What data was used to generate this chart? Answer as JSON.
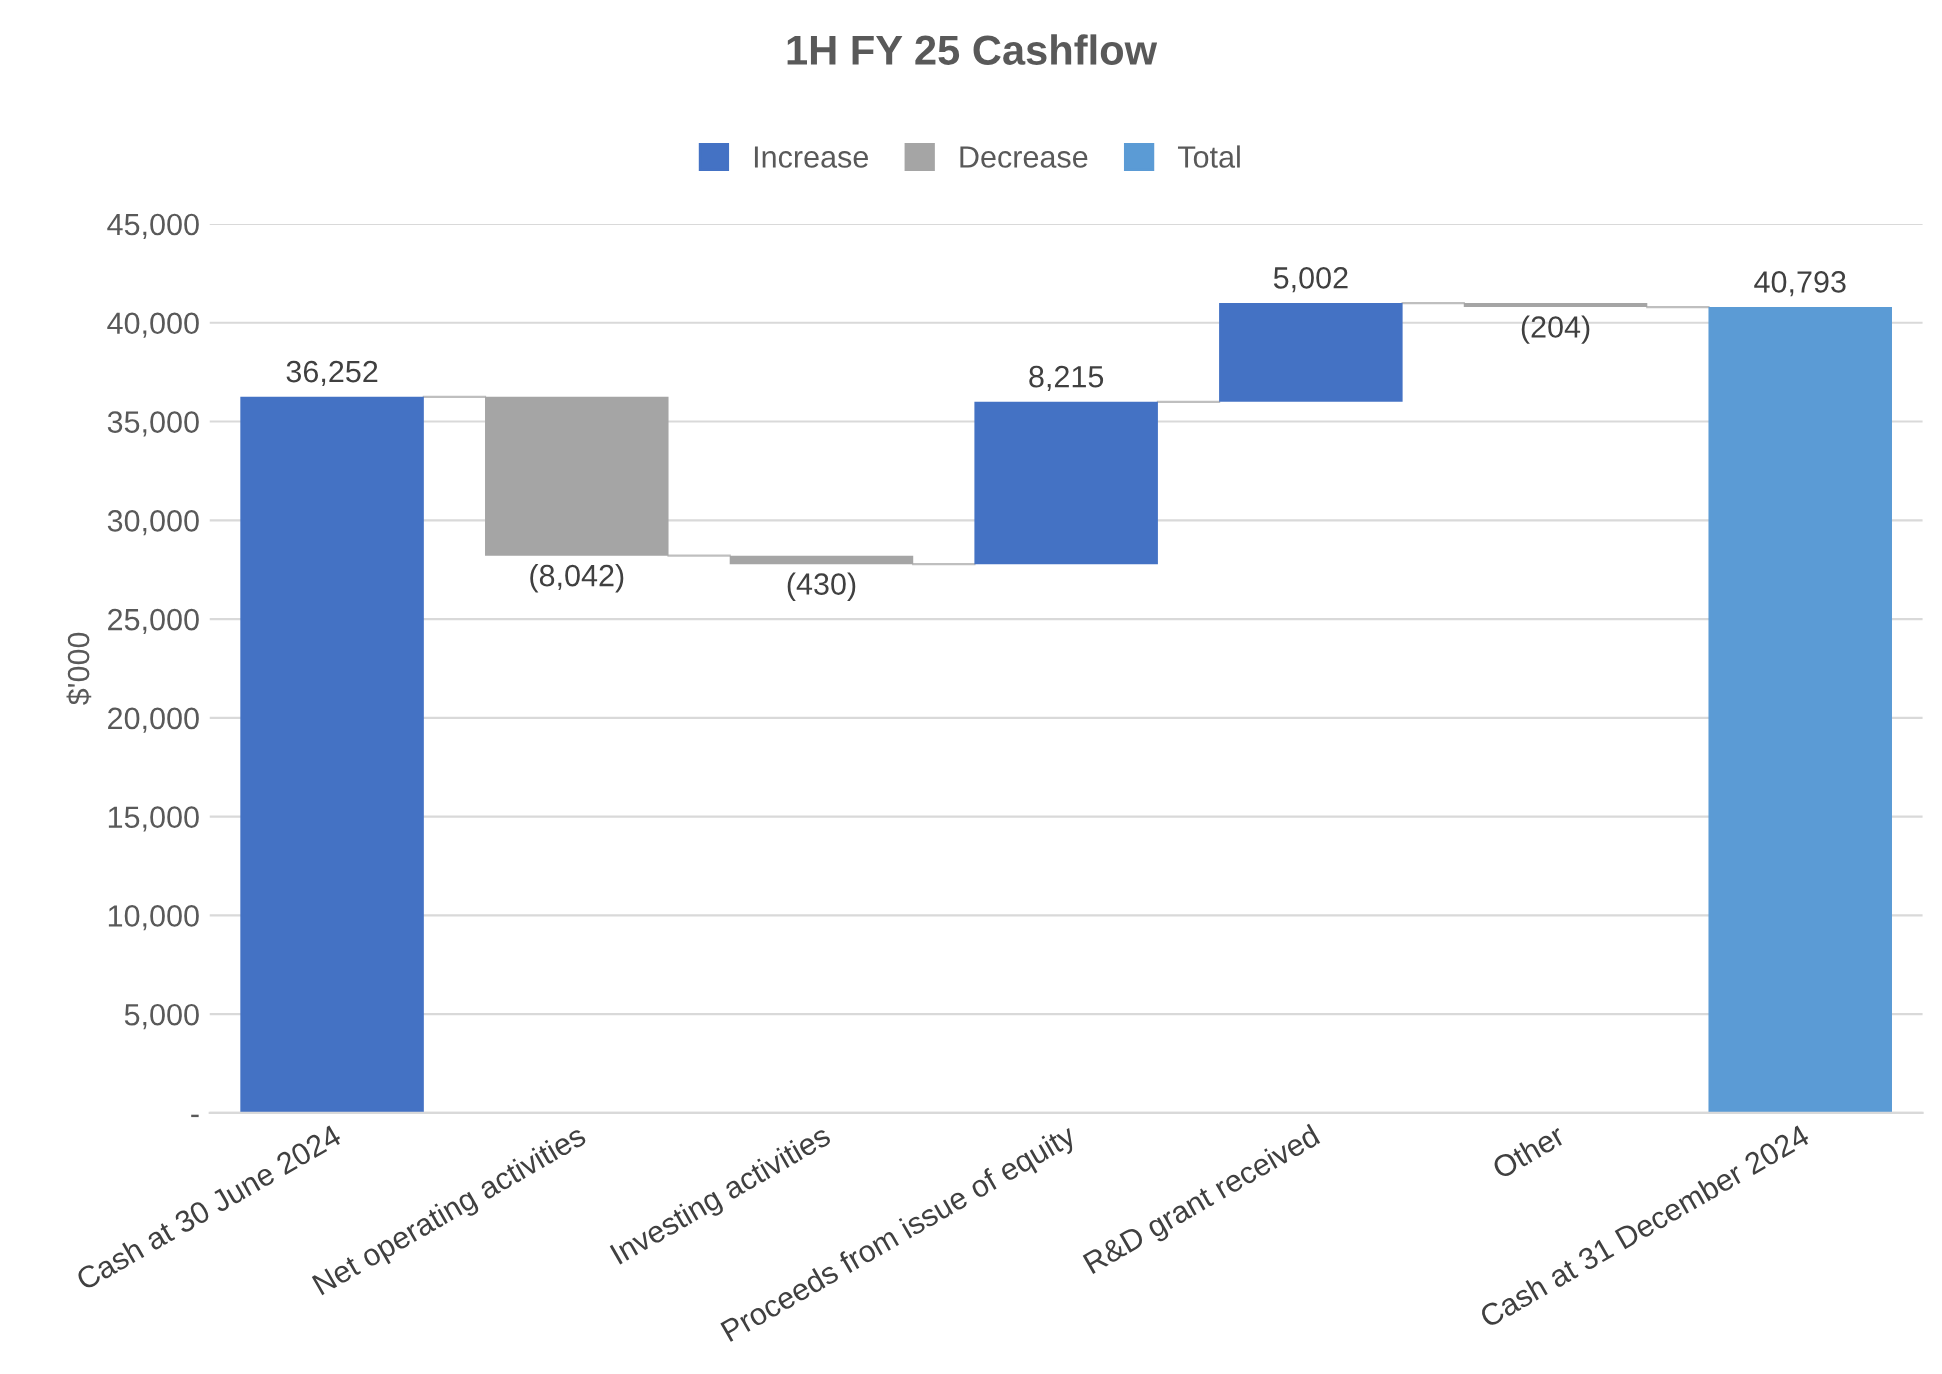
{
  "chart_data": {
    "type": "bar",
    "title": "1H FY 25 Cashflow",
    "ylabel": "$'000",
    "categories": [
      "Cash at 30 June 2024",
      "Net operating activities",
      "Investing activities",
      "Proceeds from issue of equity",
      "R&D grant received",
      "Other",
      "Cash at 31 December 2024"
    ],
    "series": [
      {
        "name": "Increase",
        "color": "#4472c4",
        "base": [
          0,
          null,
          null,
          27780,
          35995,
          null,
          null
        ],
        "values": [
          36252,
          null,
          null,
          8215,
          5002,
          null,
          null
        ],
        "value_labels": [
          "36,252",
          null,
          null,
          "8,215",
          "5,002",
          null,
          null
        ]
      },
      {
        "name": "Decrease",
        "color": "#a5a5a5",
        "base": [
          null,
          36252,
          28210,
          null,
          null,
          40997,
          null
        ],
        "values": [
          null,
          -8042,
          -430,
          null,
          null,
          -204,
          null
        ],
        "value_labels": [
          null,
          "(8,042)",
          "(430)",
          null,
          null,
          "(204)",
          null
        ]
      },
      {
        "name": "Total",
        "color": "#5b9bd5",
        "base": [
          null,
          null,
          null,
          null,
          null,
          null,
          0
        ],
        "values": [
          null,
          null,
          null,
          null,
          null,
          null,
          40793
        ],
        "value_labels": [
          null,
          null,
          null,
          null,
          null,
          null,
          "40,793"
        ]
      }
    ],
    "ylim": [
      0,
      45000
    ],
    "yticks": [
      {
        "value": 0,
        "label": "-"
      },
      {
        "value": 5000,
        "label": "5,000"
      },
      {
        "value": 10000,
        "label": "10,000"
      },
      {
        "value": 15000,
        "label": "15,000"
      },
      {
        "value": 20000,
        "label": "20,000"
      },
      {
        "value": 25000,
        "label": "25,000"
      },
      {
        "value": 30000,
        "label": "30,000"
      },
      {
        "value": 35000,
        "label": "35,000"
      },
      {
        "value": 40000,
        "label": "40,000"
      },
      {
        "value": 45000,
        "label": "45,000"
      }
    ],
    "grid": "y",
    "legend": "top"
  }
}
